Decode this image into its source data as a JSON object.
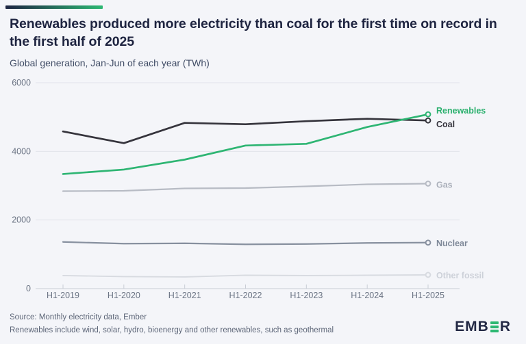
{
  "chart_data": {
    "type": "line",
    "title": "Renewables produced more electricity than coal for the first time on record in the first half of 2025",
    "subtitle": "Global generation, Jan-Jun of each year (TWh)",
    "unit": "TWh",
    "categories": [
      "H1-2019",
      "H1-2020",
      "H1-2021",
      "H1-2022",
      "H1-2023",
      "H1-2024",
      "H1-2025"
    ],
    "yticks": [
      0,
      2000,
      4000,
      6000
    ],
    "ylim": [
      0,
      6000
    ],
    "grid": "horizontal-only",
    "legend_position": "end-of-line-labels",
    "series": [
      {
        "name": "Other fossil",
        "color": "#d7dae0",
        "label_color": "#cdd1d9",
        "width": 1.8,
        "label_dy": 1,
        "values": [
          380,
          350,
          340,
          390,
          380,
          390,
          400
        ]
      },
      {
        "name": "Nuclear",
        "color": "#87909f",
        "label_color": "#7e8898",
        "width": 2.2,
        "label_dy": 1,
        "values": [
          1360,
          1310,
          1320,
          1290,
          1300,
          1330,
          1340
        ]
      },
      {
        "name": "Gas",
        "color": "#b7bbc4",
        "label_color": "#a9aeb9",
        "width": 2.2,
        "label_dy": 2,
        "values": [
          2840,
          2850,
          2920,
          2930,
          2980,
          3040,
          3060
        ]
      },
      {
        "name": "Coal",
        "color": "#35343c",
        "label_color": "#33323b",
        "width": 2.7,
        "label_dy": 6,
        "values": [
          4580,
          4240,
          4830,
          4790,
          4880,
          4950,
          4900
        ]
      },
      {
        "name": "Renewables",
        "color": "#2eb573",
        "label_color": "#2bb06e",
        "width": 2.7,
        "label_dy": -5,
        "values": [
          3340,
          3470,
          3760,
          4170,
          4220,
          4710,
          5080
        ]
      }
    ],
    "colors": {
      "background": "#f4f5f9",
      "gridline": "#e2e4ea",
      "axis_line": "#c9cdd5",
      "tick_label": "#6b7484"
    }
  },
  "footer": {
    "source_line": "Source: Monthly electricity data, Ember",
    "note_line": "Renewables include wind, solar, hydro, bioenergy and other renewables, such as geothermal"
  },
  "logo": {
    "prefix": "EMB",
    "suffix": "R",
    "accent_color": "#2db873"
  }
}
